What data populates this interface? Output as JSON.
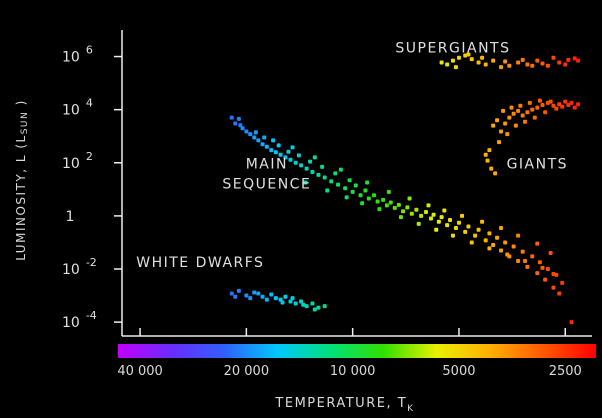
{
  "chart_data": {
    "type": "scatter",
    "title": "",
    "xlabel": "Temperature, T",
    "xlabel_sub": "K",
    "ylabel": "Luminosity, L (L",
    "ylabel_sub": "sun",
    "ylabel_end": ")",
    "x_scale": "log, reversed",
    "y_scale": "log",
    "xlim": [
      45000,
      2100
    ],
    "ylim": [
      3e-05,
      10000000
    ],
    "x_ticks": [
      {
        "value": 40000,
        "label": "40 000"
      },
      {
        "value": 20000,
        "label": "20 000"
      },
      {
        "value": 10000,
        "label": "10 000"
      },
      {
        "value": 5000,
        "label": "5000"
      },
      {
        "value": 2500,
        "label": "2500"
      }
    ],
    "y_ticks": [
      {
        "value": 1000000,
        "base": "10",
        "exp": "6"
      },
      {
        "value": 10000,
        "base": "10",
        "exp": "4"
      },
      {
        "value": 100,
        "base": "10",
        "exp": "2"
      },
      {
        "value": 1,
        "base": "1",
        "exp": ""
      },
      {
        "value": 0.01,
        "base": "10",
        "exp": "-2"
      },
      {
        "value": 0.0001,
        "base": "10",
        "exp": "-4"
      }
    ],
    "annotations": [
      {
        "lines": [
          "Supergiants"
        ],
        "temperature": 5200,
        "luminosity": 1400000
      },
      {
        "lines": [
          "Main",
          "Sequence"
        ],
        "temperature": 17500,
        "luminosity": 60
      },
      {
        "lines": [
          "Giants"
        ],
        "temperature": 3000,
        "luminosity": 60
      },
      {
        "lines": [
          "White Dwarfs"
        ],
        "temperature": 27000,
        "luminosity": 0.012
      }
    ],
    "colorbar": {
      "stops": [
        "#c000ff",
        "#6a2cff",
        "#3060ff",
        "#00c8ff",
        "#00e07a",
        "#30e000",
        "#e8f000",
        "#ffb000",
        "#ff5a00",
        "#ff0000"
      ]
    },
    "grid": false,
    "legend": "none",
    "series": [
      {
        "group": "main-sequence",
        "points": [
          [
            22000,
            5000
          ],
          [
            21500,
            3000
          ],
          [
            21000,
            4500
          ],
          [
            20500,
            2000
          ],
          [
            20000,
            1500
          ],
          [
            19500,
            1200
          ],
          [
            19000,
            900
          ],
          [
            18500,
            700
          ],
          [
            18000,
            500
          ],
          [
            17500,
            400
          ],
          [
            17000,
            300
          ],
          [
            16500,
            250
          ],
          [
            16000,
            200
          ],
          [
            15500,
            160
          ],
          [
            15000,
            130
          ],
          [
            14500,
            100
          ],
          [
            14000,
            80
          ],
          [
            13500,
            60
          ],
          [
            13000,
            45
          ],
          [
            12500,
            35
          ],
          [
            12000,
            28
          ],
          [
            11500,
            20
          ],
          [
            11000,
            15
          ],
          [
            10500,
            11
          ],
          [
            10000,
            8
          ],
          [
            9500,
            6
          ],
          [
            9000,
            4.5
          ],
          [
            8500,
            3.5
          ],
          [
            8000,
            2.5
          ],
          [
            7600,
            2
          ],
          [
            7200,
            1.5
          ],
          [
            6800,
            1.2
          ],
          [
            6400,
            1
          ],
          [
            6000,
            0.8
          ],
          [
            5700,
            0.6
          ],
          [
            5400,
            0.45
          ],
          [
            5100,
            0.35
          ],
          [
            4800,
            0.25
          ],
          [
            4500,
            0.18
          ],
          [
            4200,
            0.12
          ],
          [
            4000,
            0.08
          ],
          [
            3800,
            0.05
          ],
          [
            3600,
            0.03
          ],
          [
            3400,
            0.02
          ],
          [
            3200,
            0.012
          ],
          [
            3000,
            0.007
          ],
          [
            2850,
            0.004
          ],
          [
            2700,
            0.002
          ],
          [
            2600,
            0.0012
          ],
          [
            2400,
            0.0001
          ],
          [
            20800,
            2600
          ],
          [
            18800,
            1400
          ],
          [
            17800,
            900
          ],
          [
            16200,
            450
          ],
          [
            15200,
            260
          ],
          [
            14200,
            190
          ],
          [
            13200,
            110
          ],
          [
            12200,
            70
          ],
          [
            11200,
            40
          ],
          [
            10200,
            22
          ],
          [
            9800,
            14
          ],
          [
            9200,
            9
          ],
          [
            8700,
            6
          ],
          [
            8200,
            4
          ],
          [
            7800,
            3.2
          ],
          [
            7400,
            2.6
          ],
          [
            7000,
            2.1
          ],
          [
            6600,
            1.7
          ],
          [
            6200,
            1.4
          ],
          [
            5900,
            1.1
          ],
          [
            5600,
            0.9
          ],
          [
            5300,
            0.7
          ],
          [
            5000,
            0.55
          ],
          [
            4700,
            0.4
          ],
          [
            4400,
            0.3
          ],
          [
            4100,
            0.22
          ],
          [
            3900,
            0.15
          ],
          [
            3700,
            0.1
          ],
          [
            3500,
            0.07
          ],
          [
            3300,
            0.045
          ],
          [
            3100,
            0.03
          ],
          [
            2950,
            0.018
          ],
          [
            2800,
            0.01
          ],
          [
            2650,
            0.006
          ],
          [
            2550,
            0.003
          ],
          [
            16800,
            700
          ],
          [
            14800,
            380
          ],
          [
            12800,
            160
          ],
          [
            10800,
            55
          ],
          [
            9100,
            18
          ],
          [
            7900,
            8
          ],
          [
            6900,
            4.5
          ],
          [
            6100,
            2.5
          ],
          [
            5500,
            1.6
          ],
          [
            4900,
            1
          ],
          [
            4300,
            0.6
          ],
          [
            3800,
            0.35
          ],
          [
            3400,
            0.18
          ],
          [
            3000,
            0.09
          ],
          [
            2750,
            0.04
          ],
          [
            13600,
            18
          ],
          [
            11800,
            9
          ],
          [
            10400,
            5
          ],
          [
            9400,
            3
          ],
          [
            8400,
            1.8
          ],
          [
            7300,
            0.9
          ],
          [
            6500,
            0.5
          ],
          [
            5800,
            0.3
          ],
          [
            5200,
            0.18
          ],
          [
            4600,
            0.1
          ],
          [
            4100,
            0.06
          ],
          [
            3650,
            0.035
          ],
          [
            3250,
            0.02
          ],
          [
            2900,
            0.011
          ],
          [
            2700,
            0.0065
          ]
        ]
      },
      {
        "group": "supergiants",
        "points": [
          [
            5400,
            500000
          ],
          [
            5200,
            700000
          ],
          [
            5000,
            900000
          ],
          [
            4800,
            1100000
          ],
          [
            4600,
            800000
          ],
          [
            4400,
            600000
          ],
          [
            4200,
            500000
          ],
          [
            4000,
            700000
          ],
          [
            3800,
            400000
          ],
          [
            3600,
            450000
          ],
          [
            3400,
            600000
          ],
          [
            3200,
            500000
          ],
          [
            3000,
            700000
          ],
          [
            2900,
            550000
          ],
          [
            2800,
            450000
          ],
          [
            2600,
            600000
          ],
          [
            2450,
            750000
          ],
          [
            2300,
            700000
          ],
          [
            5600,
            600000
          ],
          [
            5100,
            400000
          ],
          [
            4700,
            1200000
          ],
          [
            4300,
            900000
          ],
          [
            3700,
            650000
          ],
          [
            3300,
            750000
          ],
          [
            3100,
            450000
          ],
          [
            2700,
            900000
          ],
          [
            2500,
            500000
          ],
          [
            2350,
            850000
          ]
        ]
      },
      {
        "group": "giants",
        "points": [
          [
            4000,
            2500
          ],
          [
            3900,
            4000
          ],
          [
            3800,
            1500
          ],
          [
            3700,
            3000
          ],
          [
            3600,
            5000
          ],
          [
            3500,
            7000
          ],
          [
            3400,
            9000
          ],
          [
            3300,
            6000
          ],
          [
            3200,
            8000
          ],
          [
            3100,
            10000
          ],
          [
            3000,
            12000
          ],
          [
            2900,
            15000
          ],
          [
            2800,
            18000
          ],
          [
            2700,
            14000
          ],
          [
            2600,
            16000
          ],
          [
            2500,
            20000
          ],
          [
            2450,
            15000
          ],
          [
            2400,
            18000
          ],
          [
            2350,
            12000
          ],
          [
            4100,
            300
          ],
          [
            4150,
            120
          ],
          [
            4050,
            60
          ],
          [
            3950,
            40
          ],
          [
            4200,
            200
          ],
          [
            3850,
            600
          ],
          [
            3650,
            1200
          ],
          [
            3450,
            2500
          ],
          [
            3250,
            3500
          ],
          [
            3050,
            5000
          ],
          [
            2850,
            8000
          ],
          [
            2650,
            11000
          ],
          [
            2550,
            13000
          ],
          [
            3750,
            9000
          ],
          [
            3550,
            12000
          ],
          [
            3350,
            14000
          ],
          [
            3150,
            18000
          ],
          [
            2950,
            22000
          ],
          [
            2750,
            20000
          ],
          [
            2300,
            16000
          ]
        ]
      },
      {
        "group": "white-dwarfs",
        "points": [
          [
            22000,
            0.0012
          ],
          [
            21000,
            0.0015
          ],
          [
            20000,
            0.001
          ],
          [
            19000,
            0.0013
          ],
          [
            18000,
            0.0009
          ],
          [
            17000,
            0.0011
          ],
          [
            16500,
            0.0008
          ],
          [
            16000,
            0.0007
          ],
          [
            15500,
            0.0009
          ],
          [
            15000,
            0.0006
          ],
          [
            14500,
            0.0005
          ],
          [
            14000,
            0.0006
          ],
          [
            13500,
            0.0004
          ],
          [
            13000,
            0.0005
          ],
          [
            12500,
            0.00035
          ],
          [
            12000,
            0.0004
          ],
          [
            21500,
            0.0009
          ],
          [
            19500,
            0.0008
          ],
          [
            18500,
            0.0012
          ],
          [
            17500,
            0.0007
          ],
          [
            15800,
            0.00055
          ],
          [
            14800,
            0.0008
          ],
          [
            13800,
            0.00045
          ],
          [
            12800,
            0.0003
          ]
        ]
      }
    ]
  }
}
